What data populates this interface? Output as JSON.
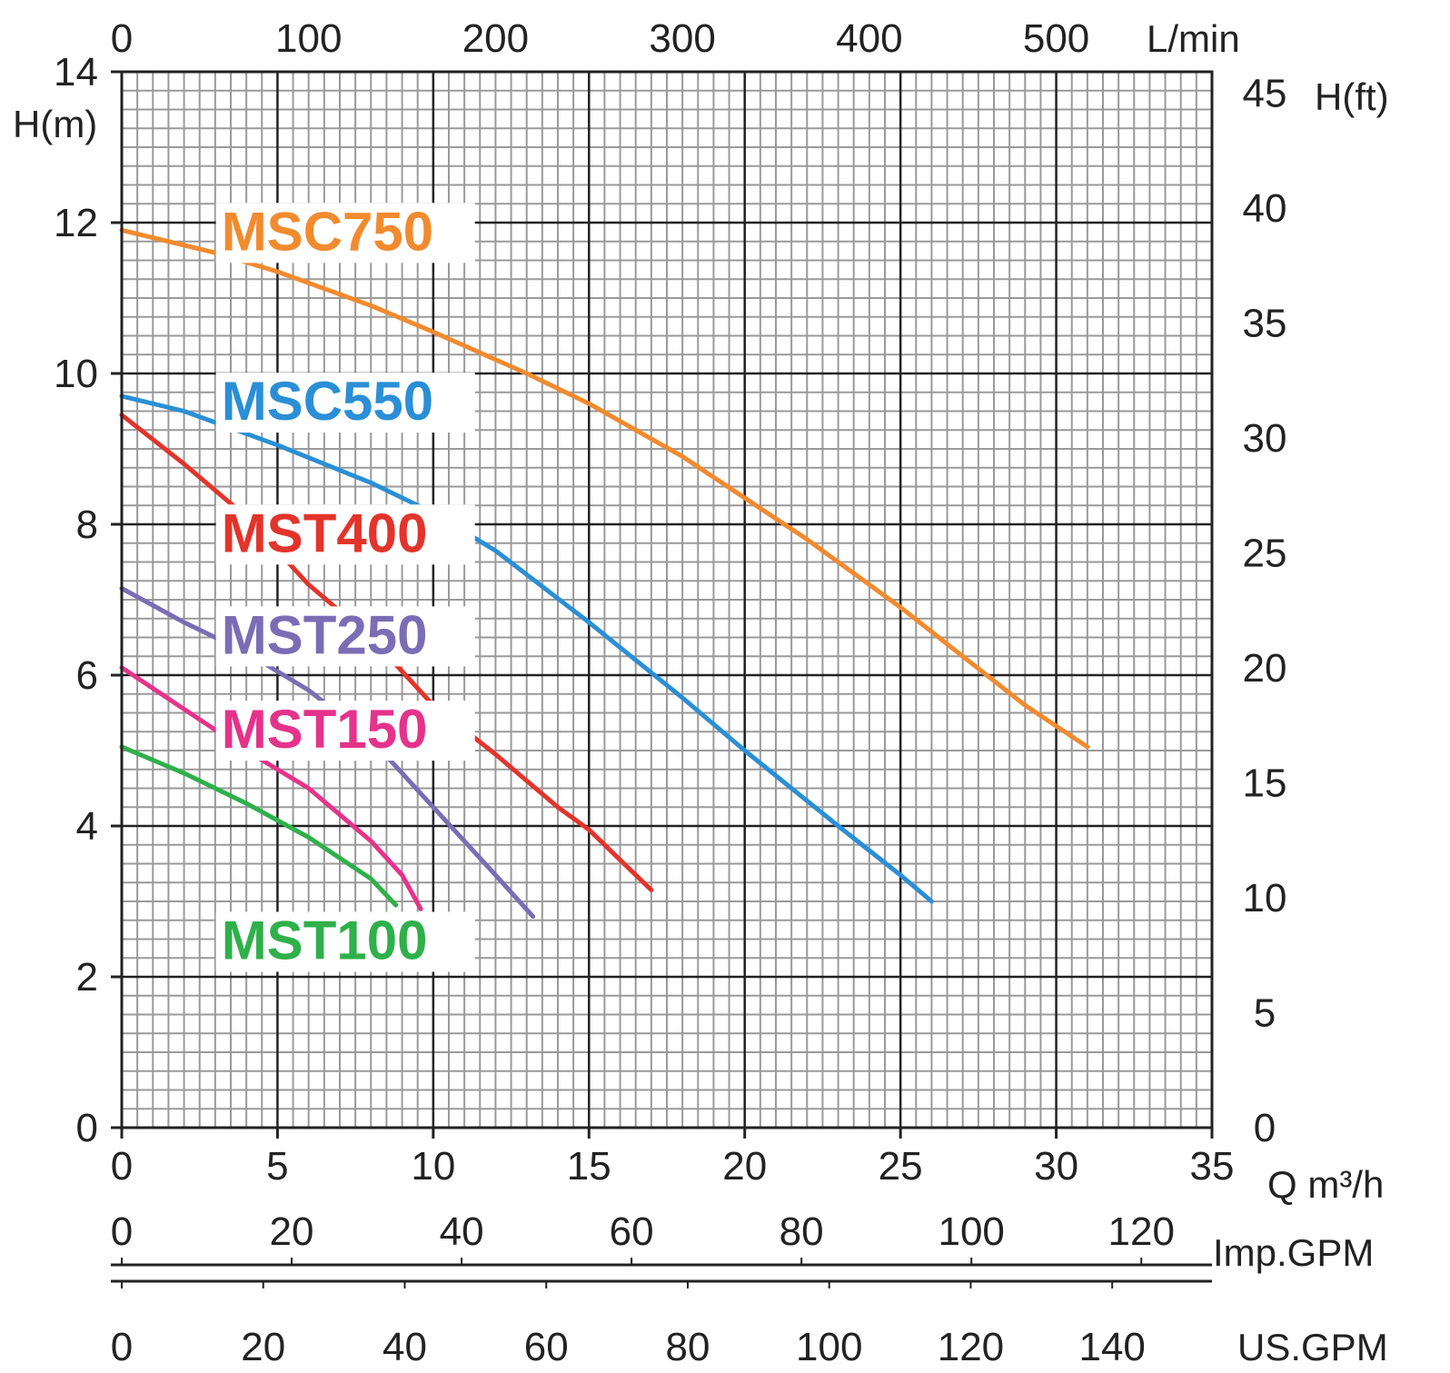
{
  "chart_data": {
    "type": "line",
    "x_axis": {
      "label": "Q m³/h",
      "range": [
        0,
        35
      ],
      "ticks": [
        0,
        5,
        10,
        15,
        20,
        25,
        30,
        35
      ]
    },
    "y_axis": {
      "label": "H(m)",
      "range": [
        0,
        14
      ],
      "ticks": [
        0,
        2,
        4,
        6,
        8,
        10,
        12,
        14
      ]
    },
    "top_axis": {
      "label": "L/min",
      "ticks": [
        0,
        100,
        200,
        300,
        400,
        500
      ]
    },
    "right_axis": {
      "label": "H(ft)",
      "ticks": [
        0,
        5,
        10,
        15,
        20,
        25,
        30,
        35,
        40,
        45
      ]
    },
    "imp_gpm_axis": {
      "label": "Imp.GPM",
      "ticks": [
        0,
        20,
        40,
        60,
        80,
        100,
        120
      ]
    },
    "us_gpm_axis": {
      "label": "US.GPM",
      "ticks": [
        0,
        20,
        40,
        60,
        80,
        100,
        120,
        140
      ]
    },
    "grid": true,
    "series": [
      {
        "name": "MSC750",
        "color": "#f28a2e",
        "label_pos": [
          3.2,
          11.9
        ],
        "points": [
          [
            0,
            11.9
          ],
          [
            3,
            11.6
          ],
          [
            5,
            11.35
          ],
          [
            8,
            10.9
          ],
          [
            10,
            10.55
          ],
          [
            13,
            10.0
          ],
          [
            15,
            9.6
          ],
          [
            18,
            8.9
          ],
          [
            20,
            8.35
          ],
          [
            22,
            7.8
          ],
          [
            25,
            6.9
          ],
          [
            27,
            6.25
          ],
          [
            29,
            5.6
          ],
          [
            31,
            5.05
          ]
        ]
      },
      {
        "name": "MSC550",
        "color": "#2a8fd6",
        "label_pos": [
          3.2,
          9.65
        ],
        "points": [
          [
            0,
            9.7
          ],
          [
            2,
            9.5
          ],
          [
            5,
            9.05
          ],
          [
            8,
            8.55
          ],
          [
            10,
            8.15
          ],
          [
            12,
            7.65
          ],
          [
            15,
            6.7
          ],
          [
            18,
            5.7
          ],
          [
            20,
            5.0
          ],
          [
            23,
            4.0
          ],
          [
            25,
            3.35
          ],
          [
            26,
            3.0
          ]
        ]
      },
      {
        "name": "MST400",
        "color": "#e3342b",
        "label_pos": [
          3.2,
          7.9
        ],
        "points": [
          [
            0,
            9.45
          ],
          [
            2,
            8.8
          ],
          [
            4,
            8.1
          ],
          [
            6,
            7.2
          ],
          [
            8,
            6.5
          ],
          [
            10,
            5.6
          ],
          [
            12,
            4.95
          ],
          [
            14,
            4.25
          ],
          [
            15,
            3.95
          ],
          [
            16,
            3.55
          ],
          [
            17,
            3.15
          ]
        ]
      },
      {
        "name": "MST250",
        "color": "#7a6db5",
        "label_pos": [
          3.2,
          6.55
        ],
        "points": [
          [
            0,
            7.15
          ],
          [
            2,
            6.7
          ],
          [
            4,
            6.3
          ],
          [
            6,
            5.8
          ],
          [
            8,
            5.15
          ],
          [
            10,
            4.25
          ],
          [
            12,
            3.35
          ],
          [
            13.2,
            2.8
          ]
        ]
      },
      {
        "name": "MST150",
        "color": "#e5338b",
        "label_pos": [
          3.2,
          5.3
        ],
        "points": [
          [
            0,
            6.1
          ],
          [
            2,
            5.55
          ],
          [
            4,
            5.0
          ],
          [
            6,
            4.5
          ],
          [
            8,
            3.8
          ],
          [
            9,
            3.35
          ],
          [
            9.6,
            2.9
          ]
        ]
      },
      {
        "name": "MST100",
        "color": "#2fb04a",
        "label_pos": [
          3.2,
          2.5
        ],
        "points": [
          [
            0,
            5.05
          ],
          [
            2,
            4.7
          ],
          [
            4,
            4.3
          ],
          [
            6,
            3.85
          ],
          [
            8,
            3.3
          ],
          [
            8.8,
            2.95
          ]
        ]
      }
    ]
  }
}
